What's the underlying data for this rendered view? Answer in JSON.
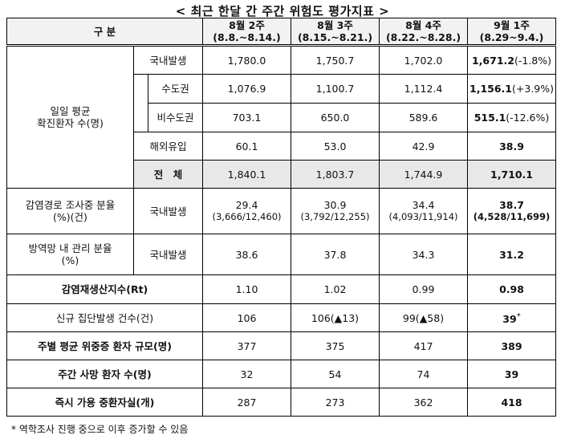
{
  "title": "< 최근 한달 간 주간 위험도 평가지표 >",
  "header": {
    "category": "구 분",
    "periods": [
      {
        "week": "8월 2주",
        "range": "(8.8.~8.14.)"
      },
      {
        "week": "8월 3주",
        "range": "(8.15.~8.21.)"
      },
      {
        "week": "8월 4주",
        "range": "(8.22.~8.28.)"
      },
      {
        "week": "9월 1주",
        "range": "(8.29~9.4.)"
      }
    ]
  },
  "daily_avg": {
    "label_line1": "일일 평균",
    "label_line2": "확진환자 수(명)",
    "rows": {
      "domestic": {
        "label": "국내발생",
        "values": [
          "1,780.0",
          "1,750.7",
          "1,702.0"
        ],
        "latest": "1,671.2",
        "latest_change": "(-1.8%)"
      },
      "capital": {
        "label": "수도권",
        "values": [
          "1,076.9",
          "1,100.7",
          "1,112.4"
        ],
        "latest": "1,156.1",
        "latest_change": "(+3.9%)"
      },
      "noncapital": {
        "label": "비수도권",
        "values": [
          "703.1",
          "650.0",
          "589.6"
        ],
        "latest": "515.1",
        "latest_change": "(-12.6%)"
      },
      "overseas": {
        "label": "해외유입",
        "values": [
          "60.1",
          "53.0",
          "42.9"
        ],
        "latest": "38.9"
      },
      "total": {
        "label": "전　체",
        "values": [
          "1,840.1",
          "1,803.7",
          "1,744.9"
        ],
        "latest": "1,710.1"
      }
    }
  },
  "investigation": {
    "label_line1": "감염경로 조사중 분율",
    "label_line2": "(%)(건)",
    "sub_label": "국내발생",
    "values": [
      "29.4",
      "30.9",
      "34.4"
    ],
    "details": [
      "(3,666/12,460)",
      "(3,792/12,255)",
      "(4,093/11,914)"
    ],
    "latest": "38.7",
    "latest_detail": "(4,528/11,699)"
  },
  "managed": {
    "label_line1": "방역망 내 관리 분율",
    "label_line2": "(%)",
    "sub_label": "국내발생",
    "values": [
      "38.6",
      "37.8",
      "34.3"
    ],
    "latest": "31.2"
  },
  "rt": {
    "label": "감염재생산지수(Rt)",
    "values": [
      "1.10",
      "1.02",
      "0.99"
    ],
    "latest": "0.98"
  },
  "clusters": {
    "label": "신규 집단발생 건수(건)",
    "values": [
      "106",
      "106(▲13)",
      "99(▲58)"
    ],
    "latest": "39",
    "latest_mark": "*"
  },
  "severe": {
    "label": "주별 평균 위중증 환자 규모(명)",
    "values": [
      "377",
      "375",
      "417"
    ],
    "latest": "389"
  },
  "deaths": {
    "label": "주간 사망 환자 수(명)",
    "values": [
      "32",
      "54",
      "74"
    ],
    "latest": "39"
  },
  "icu": {
    "label": "즉시 가용 중환자실(개)",
    "values": [
      "287",
      "273",
      "362"
    ],
    "latest": "418"
  },
  "footnote": "* 역학조사 진행 중으로 이후 증가할 수 있음"
}
